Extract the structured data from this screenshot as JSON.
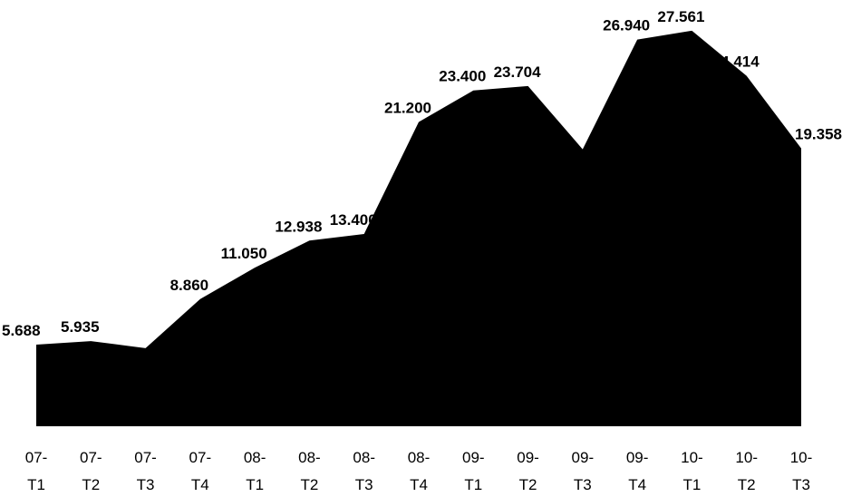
{
  "chart_data": {
    "type": "area",
    "categories": [
      "07-T1",
      "07-T2",
      "07-T3",
      "07-T4",
      "08-T1",
      "08-T2",
      "08-T3",
      "08-T4",
      "09-T1",
      "09-T2",
      "09-T3",
      "09-T4",
      "10-T1",
      "10-T2",
      "10-T3"
    ],
    "values": [
      5.688,
      5.935,
      5.44,
      8.86,
      11.05,
      12.938,
      13.4,
      21.2,
      23.4,
      23.704,
      19.3,
      26.94,
      27.561,
      24.414,
      19.358
    ],
    "value_labels": [
      "5.688",
      "5.935",
      null,
      "8.860",
      "11.050",
      "12.938",
      "13.400",
      "21.200",
      "23.400",
      "23.704",
      null,
      "26.940",
      "27.561",
      "24.414",
      "19.358"
    ],
    "color": "#000000",
    "ylim": [
      0,
      29.7
    ]
  }
}
